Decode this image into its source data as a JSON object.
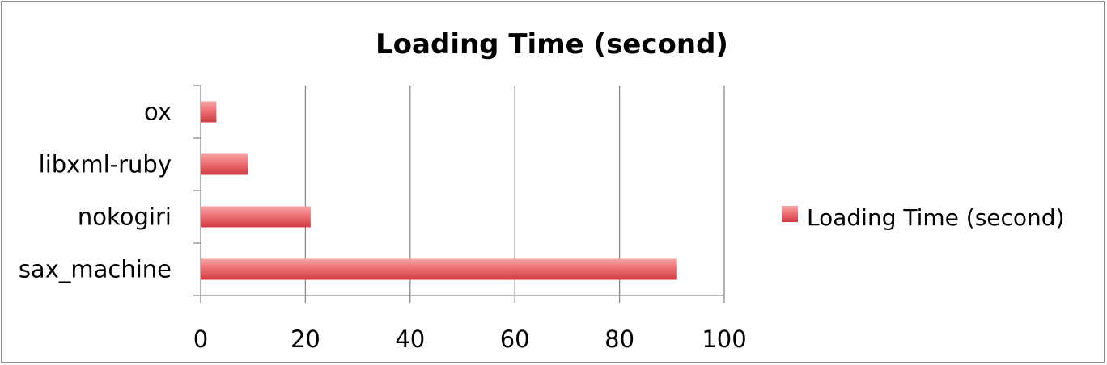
{
  "chart_data": {
    "type": "bar",
    "orientation": "horizontal",
    "title": "Loading Time (second)",
    "xlabel": "",
    "ylabel": "",
    "categories": [
      "ox",
      "libxml-ruby",
      "nokogiri",
      "sax_machine"
    ],
    "series": [
      {
        "name": "Loading Time (second)",
        "values": [
          3,
          9,
          21,
          91
        ],
        "color": "#e8585c"
      }
    ],
    "xlim": [
      0,
      100
    ],
    "xticks": [
      "0",
      "20",
      "40",
      "60",
      "80",
      "100"
    ],
    "grid": "vertical",
    "legend_position": "right"
  }
}
